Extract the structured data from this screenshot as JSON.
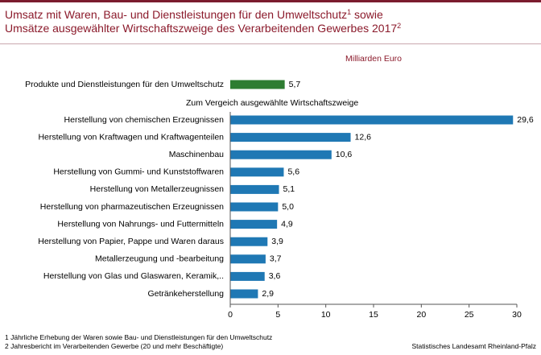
{
  "title": {
    "line1": "Umsatz mit Waren, Bau- und Dienstleistungen für den Umweltschutz",
    "sup1": "1",
    "line1_tail": " sowie",
    "line2": "Umsätze ausgewählter Wirtschaftszweige des Verarbeitenden Gewerbes 2017",
    "sup2": "2"
  },
  "chart_data": {
    "type": "bar",
    "orientation": "horizontal",
    "unit_label": "Milliarden Euro",
    "group_label": "Zum Vergeich ausgewählte Wirtschaftszweige",
    "highlight": {
      "category": "Produkte und Dienstleistungen für den Umweltschutz",
      "value": 5.7,
      "label": "5,7",
      "color": "#2e7d32"
    },
    "categories": [
      "Herstellung von chemischen Erzeugnissen",
      "Herstellung von Kraftwagen und Kraftwagenteilen",
      "Maschinenbau",
      "Herstellung von Gummi- und Kunststoffwaren",
      "Herstellung von Metallerzeugnissen",
      "Herstellung von pharmazeutischen Erzeugnissen",
      "Herstellung von Nahrungs- und Futtermitteln",
      "Herstellung von Papier, Pappe und Waren daraus",
      "Metallerzeugung und -bearbeitung",
      "Herstellung von Glas und Glaswaren, Keramik,..",
      "Getränkeherstellung"
    ],
    "values": [
      29.6,
      12.6,
      10.6,
      5.6,
      5.1,
      5.0,
      4.9,
      3.9,
      3.7,
      3.6,
      2.9
    ],
    "value_labels": [
      "29,6",
      "12,6",
      "10,6",
      "5,6",
      "5,1",
      "5,0",
      "4,9",
      "3,9",
      "3,7",
      "3,6",
      "2,9"
    ],
    "bar_color": "#1f78b4",
    "xlim": [
      0,
      30
    ],
    "xticks": [
      0,
      5,
      10,
      15,
      20,
      25,
      30
    ],
    "grid": false
  },
  "footnotes": [
    "1 Jährliche Erhebung der Waren sowie Bau- und Dienstleistungen für den Umweltschutz",
    "2 Jahresbericht im Verarbeitenden Gewerbe (20 und mehr Beschäftigte)"
  ],
  "source": "Statistisches Landesamt Rheinland-Pfalz",
  "colors": {
    "title": "#8b1a2b",
    "topbar": "#7b1c2e"
  }
}
